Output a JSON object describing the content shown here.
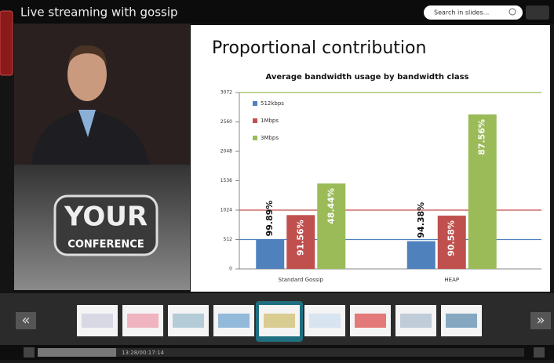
{
  "header": {
    "title": "Live streaming with gossip",
    "search_placeholder": "Search in slides..."
  },
  "logo": {
    "line1": "YOUR",
    "line2": "CONFERENCE"
  },
  "slide": {
    "title": "Proportional contribution"
  },
  "chart_data": {
    "type": "bar",
    "title": "Average bandwidth usage by bandwidth class",
    "categories": [
      "Standard Gossip",
      "HEAP"
    ],
    "series": [
      {
        "name": "512kbps",
        "color": "#4f81bd",
        "values": [
          511.4,
          483.2
        ],
        "percent_labels": [
          "99.89%",
          "94.38%"
        ]
      },
      {
        "name": "1Mbps",
        "color": "#c0504d",
        "values": [
          937.6,
          927.5
        ],
        "percent_labels": [
          "91.56%",
          "90.58%"
        ]
      },
      {
        "name": "3Mbps",
        "color": "#9bbb59",
        "values": [
          1488,
          2689.8
        ],
        "percent_labels": [
          "48.44%",
          "87.56%"
        ]
      }
    ],
    "ylim": [
      0,
      3072
    ],
    "yticks": [
      0,
      512,
      1024,
      1536,
      2048,
      2560,
      3072
    ],
    "reference_lines": [
      {
        "value": 512,
        "color": "#4f81bd"
      },
      {
        "value": 1024,
        "color": "#c0504d"
      },
      {
        "value": 3072,
        "color": "#9bbb59"
      }
    ],
    "legend": "top-left"
  },
  "player": {
    "time": "13:28/00:17:14",
    "prev": "«",
    "next": "»"
  }
}
